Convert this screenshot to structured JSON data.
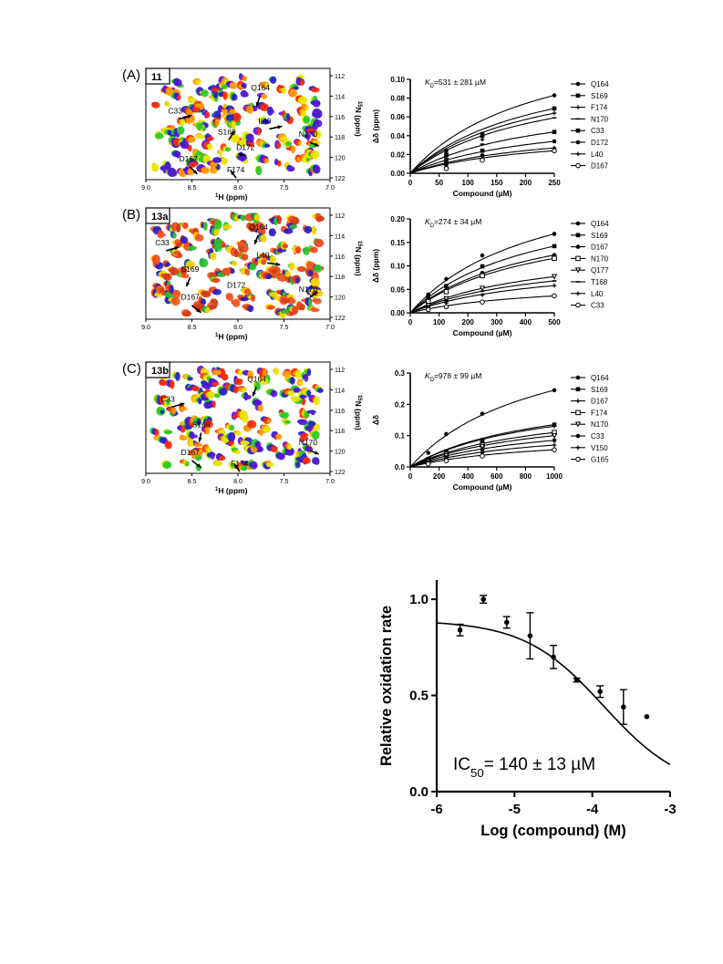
{
  "panels": [
    {
      "panel_label": "(A)",
      "compound": "11",
      "hsqc": {
        "xlabel_sup": "1",
        "xlabel_main": "H (ppm)",
        "ylabel_sup": "15",
        "ylabel_main": "N (ppm)",
        "x_ticks": [
          "9.0",
          "8.5",
          "8.0",
          "7.5",
          "7.0"
        ],
        "y_ticks": [
          "112",
          "114",
          "116",
          "118",
          "120",
          "122"
        ],
        "palette": [
          "#2a1fc8",
          "#5b16d6",
          "#ff2a00",
          "#ffa000",
          "#e8e800",
          "#28c828"
        ],
        "annotations": [
          "Q164",
          "C33",
          "L40",
          "S169",
          "D172",
          "N170",
          "D167",
          "F174"
        ]
      },
      "titration": {
        "kd_prefix": "K",
        "kd_sub": "D",
        "kd_value": "=531 ± 281 µM",
        "xlabel": "Compound (µM)",
        "ylabel": "Δδ (ppm)",
        "x_ticks": [
          "0",
          "50",
          "100",
          "150",
          "200",
          "250"
        ],
        "y_ticks": [
          "0.00",
          "0.02",
          "0.04",
          "0.06",
          "0.08",
          "0.10"
        ],
        "legend": [
          "Q164",
          "S169",
          "F174",
          "N170",
          "C33",
          "D172",
          "L40",
          "D167"
        ]
      }
    },
    {
      "panel_label": "(B)",
      "compound": "13a",
      "hsqc": {
        "xlabel_sup": "1",
        "xlabel_main": "H (ppm)",
        "ylabel_sup": "15",
        "ylabel_main": "N (ppm)",
        "x_ticks": [
          "9.0",
          "8.5",
          "8.0",
          "7.5",
          "7.0"
        ],
        "y_ticks": [
          "112",
          "114",
          "116",
          "118",
          "120",
          "122"
        ],
        "palette": [
          "#e8401c",
          "#f05a28",
          "#d23a10",
          "#2a1fc8",
          "#28c828",
          "#ffd000"
        ],
        "annotations": [
          "Q164",
          "C33",
          "L40",
          "S169",
          "D172",
          "D167",
          "N170"
        ]
      },
      "titration": {
        "kd_prefix": "K",
        "kd_sub": "D",
        "kd_value": "=274 ± 34 µM",
        "xlabel": "Compound (µM)",
        "ylabel": "Δδ (ppm)",
        "x_ticks": [
          "0",
          "100",
          "200",
          "300",
          "400",
          "500"
        ],
        "y_ticks": [
          "0.00",
          "0.05",
          "0.10",
          "0.15",
          "0.20"
        ],
        "legend": [
          "Q164",
          "S169",
          "D167",
          "N170",
          "Q177",
          "T168",
          "L40",
          "C33"
        ]
      }
    },
    {
      "panel_label": "(C)",
      "compound": "13b",
      "hsqc": {
        "xlabel_sup": "1",
        "xlabel_main": "H (ppm)",
        "ylabel_sup": "15",
        "ylabel_main": "N (ppm)",
        "x_ticks": [
          "9.0",
          "8.5",
          "8.0",
          "7.5",
          "7.0"
        ],
        "y_ticks": [
          "112",
          "114",
          "116",
          "118",
          "120",
          "122"
        ],
        "palette": [
          "#2a1fc8",
          "#5b16d6",
          "#ff2a00",
          "#ffa000",
          "#e8e800",
          "#28c828"
        ],
        "annotations": [
          "Q164",
          "C33",
          "S169",
          "D167",
          "N170",
          "F174"
        ]
      },
      "titration": {
        "kd_prefix": "K",
        "kd_sub": "D",
        "kd_value": "=978 ± 99 µM",
        "xlabel": "Compound (µM)",
        "ylabel": "Δδ",
        "x_ticks": [
          "0",
          "200",
          "400",
          "600",
          "800",
          "1000"
        ],
        "y_ticks": [
          "0.0",
          "0.1",
          "0.2",
          "0.3"
        ],
        "legend": [
          "Q164",
          "S169",
          "D167",
          "F174",
          "N170",
          "C33",
          "V150",
          "G165"
        ]
      }
    }
  ],
  "ic50": {
    "text_prefix": "IC",
    "text_sub": "50",
    "text_value": "= 140 ± 13 µM",
    "xlabel": "Log (compound) (M)",
    "ylabel": "Relative oxidation rate",
    "x_ticks": [
      "-6",
      "-5",
      "-4",
      "-3"
    ],
    "y_ticks": [
      "0.0",
      "0.5",
      "1.0"
    ]
  },
  "chart_data": [
    {
      "type": "line",
      "title": "",
      "xlabel": "Compound (µM)",
      "ylabel": "Δδ (ppm)",
      "xlim": [
        0,
        250
      ],
      "ylim": [
        0,
        0.1
      ],
      "x": [
        0,
        62.5,
        125,
        250
      ],
      "series": [
        {
          "name": "Q164",
          "values": [
            0,
            0.024,
            0.042,
            0.083
          ]
        },
        {
          "name": "S169",
          "values": [
            0,
            0.02,
            0.04,
            0.069
          ]
        },
        {
          "name": "F174",
          "values": [
            0,
            0.018,
            0.036,
            0.064
          ]
        },
        {
          "name": "N170",
          "values": [
            0,
            0.016,
            0.031,
            0.059
          ]
        },
        {
          "name": "C33",
          "values": [
            0,
            0.013,
            0.024,
            0.044
          ]
        },
        {
          "name": "D172",
          "values": [
            0,
            0.01,
            0.019,
            0.034
          ]
        },
        {
          "name": "L40",
          "values": [
            0,
            0.008,
            0.016,
            0.027
          ]
        },
        {
          "name": "D167",
          "values": [
            0,
            0.005,
            0.014,
            0.024
          ]
        }
      ]
    },
    {
      "type": "line",
      "title": "",
      "xlabel": "Compound (µM)",
      "ylabel": "Δδ (ppm)",
      "xlim": [
        0,
        500
      ],
      "ylim": [
        0,
        0.2
      ],
      "x": [
        0,
        62.5,
        125,
        250,
        500
      ],
      "series": [
        {
          "name": "Q164",
          "values": [
            0,
            0.039,
            0.072,
            0.122,
            0.168
          ]
        },
        {
          "name": "S169",
          "values": [
            0,
            0.032,
            0.057,
            0.099,
            0.142
          ]
        },
        {
          "name": "D167",
          "values": [
            0,
            0.026,
            0.049,
            0.085,
            0.123
          ]
        },
        {
          "name": "N170",
          "values": [
            0,
            0.024,
            0.045,
            0.079,
            0.116
          ]
        },
        {
          "name": "Q177",
          "values": [
            0,
            0.016,
            0.03,
            0.052,
            0.077
          ]
        },
        {
          "name": "T168",
          "values": [
            0,
            0.013,
            0.026,
            0.046,
            0.068
          ]
        },
        {
          "name": "L40",
          "values": [
            0,
            0.011,
            0.021,
            0.038,
            0.058
          ]
        },
        {
          "name": "C33",
          "values": [
            0,
            0.007,
            0.013,
            0.023,
            0.036
          ]
        }
      ]
    },
    {
      "type": "line",
      "title": "",
      "xlabel": "Compound (µM)",
      "ylabel": "Δδ",
      "xlim": [
        0,
        1000
      ],
      "ylim": [
        0,
        0.3
      ],
      "x": [
        0,
        125,
        250,
        500,
        1000
      ],
      "series": [
        {
          "name": "Q164",
          "values": [
            0,
            0.045,
            0.105,
            0.17,
            0.245
          ]
        },
        {
          "name": "S169",
          "values": [
            0,
            0.025,
            0.05,
            0.085,
            0.135
          ]
        },
        {
          "name": "D167",
          "values": [
            0,
            0.022,
            0.045,
            0.08,
            0.13
          ]
        },
        {
          "name": "F174",
          "values": [
            0,
            0.02,
            0.04,
            0.07,
            0.11
          ]
        },
        {
          "name": "N170",
          "values": [
            0,
            0.018,
            0.035,
            0.065,
            0.1
          ]
        },
        {
          "name": "C33",
          "values": [
            0,
            0.015,
            0.03,
            0.055,
            0.085
          ]
        },
        {
          "name": "V150",
          "values": [
            0,
            0.012,
            0.025,
            0.045,
            0.07
          ]
        },
        {
          "name": "G165",
          "values": [
            0,
            0.01,
            0.02,
            0.035,
            0.055
          ]
        }
      ]
    },
    {
      "type": "scatter",
      "title": "",
      "xlabel": "Log (compound) (M)",
      "ylabel": "Relative oxidation rate",
      "xlim": [
        -6,
        -3
      ],
      "ylim": [
        0,
        1.1
      ],
      "x": [
        -5.7,
        -5.4,
        -5.1,
        -4.8,
        -4.5,
        -4.2,
        -3.9,
        -3.6,
        -3.3
      ],
      "values": [
        0.84,
        1.0,
        0.88,
        0.81,
        0.7,
        0.58,
        0.52,
        0.44,
        0.39
      ],
      "error": [
        0.03,
        0.02,
        0.03,
        0.12,
        0.06,
        0.01,
        0.03,
        0.09,
        0
      ],
      "fit": {
        "top": 0.89,
        "bottom": 0,
        "log_ic50": -3.854,
        "hill": 0.85
      }
    }
  ]
}
